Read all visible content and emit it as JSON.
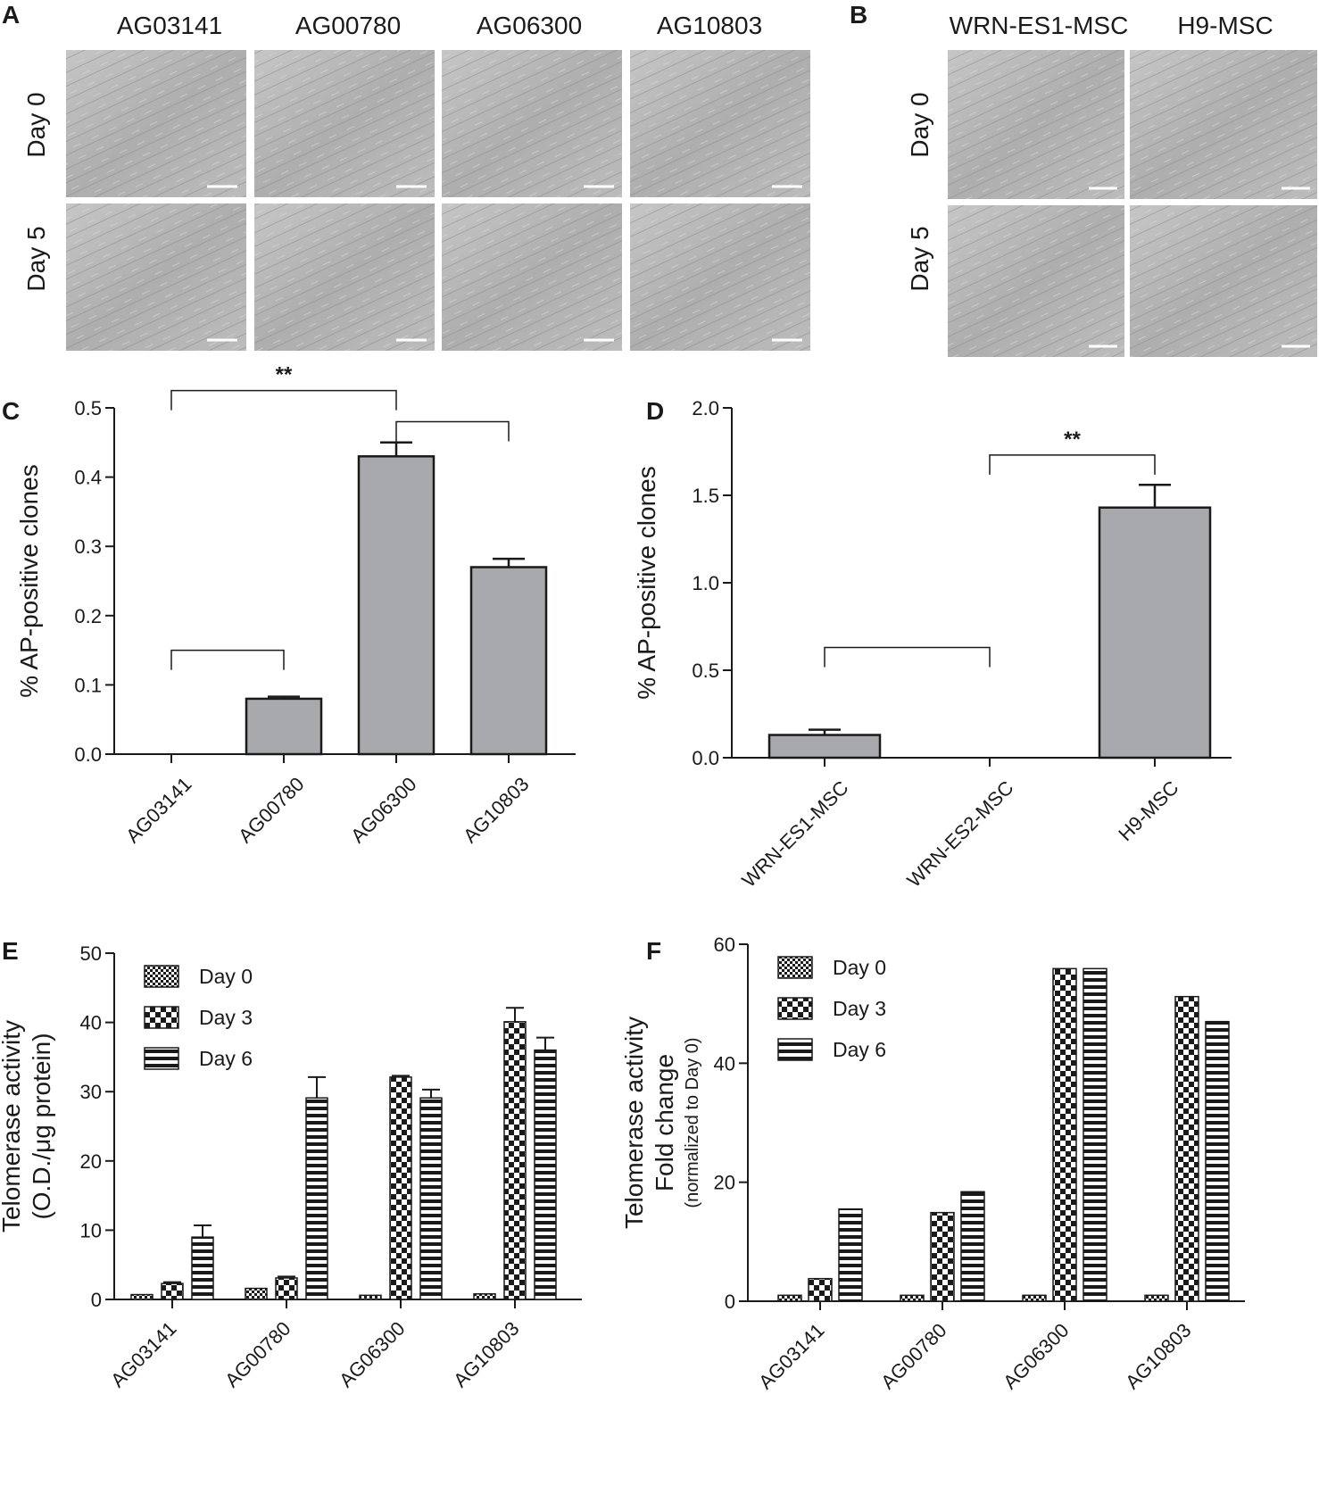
{
  "panels": {
    "A": {
      "label": "A",
      "columns": [
        "AG03141",
        "AG00780",
        "AG06300",
        "AG10803"
      ],
      "rows": [
        "Day 0",
        "Day 5"
      ]
    },
    "B": {
      "label": "B",
      "columns": [
        "WRN-ES1-MSC",
        "H9-MSC"
      ],
      "rows": [
        "Day 0",
        "Day 5"
      ]
    },
    "C": {
      "label": "C"
    },
    "D": {
      "label": "D"
    },
    "E": {
      "label": "E"
    },
    "F": {
      "label": "F"
    }
  },
  "colors": {
    "bar_fill": "#a7a9ac",
    "image_bg": "#b4b4b4",
    "ink": "#1a1a1a"
  },
  "chart_data": [
    {
      "id": "C",
      "type": "bar",
      "categories": [
        "AG03141",
        "AG00780",
        "AG06300",
        "AG10803"
      ],
      "values": [
        0.0,
        0.08,
        0.43,
        0.27
      ],
      "errors": [
        0.0,
        0.003,
        0.02,
        0.012
      ],
      "ylabel": "% AP-positive clones",
      "ylim": [
        0,
        0.5
      ],
      "yticks": [
        "0.0",
        "0.1",
        "0.2",
        "0.3",
        "0.4",
        "0.5"
      ],
      "significance": [
        {
          "from": 1,
          "to": 3,
          "label": "**",
          "level": 0.525
        },
        {
          "from": 3,
          "to": 4,
          "label": "",
          "level": 0.48
        },
        {
          "from": 1,
          "to": 2,
          "label": "",
          "level": 0.15
        }
      ]
    },
    {
      "id": "D",
      "type": "bar",
      "categories": [
        "WRN-ES1-MSC",
        "WRN-ES2-MSC",
        "H9-MSC"
      ],
      "values": [
        0.13,
        0.0,
        1.43
      ],
      "errors": [
        0.03,
        0.0,
        0.13
      ],
      "ylabel": "% AP-positive clones",
      "ylim": [
        0,
        2.0
      ],
      "yticks": [
        "0.0",
        "0.5",
        "1.0",
        "1.5",
        "2.0"
      ],
      "significance": [
        {
          "from": 2,
          "to": 3,
          "label": "**",
          "level": 1.73
        },
        {
          "from": 1,
          "to": 2,
          "label": "",
          "level": 0.63
        }
      ]
    },
    {
      "id": "E",
      "type": "bar",
      "categories": [
        "AG03141",
        "AG00780",
        "AG06300",
        "AG10803"
      ],
      "series": [
        {
          "name": "Day 0",
          "values": [
            0.7,
            1.6,
            0.6,
            0.8
          ],
          "errors": [
            0,
            0,
            0,
            0
          ]
        },
        {
          "name": "Day 3",
          "values": [
            2.3,
            3.1,
            32.1,
            40.1
          ],
          "errors": [
            0.2,
            0.2,
            0.2,
            2.0
          ]
        },
        {
          "name": "Day 6",
          "values": [
            9.0,
            29.1,
            29.1,
            36.0
          ],
          "errors": [
            1.7,
            3.0,
            1.2,
            1.8
          ]
        }
      ],
      "ylabel": [
        "Telomerase activity",
        "(O.D./μg protein)"
      ],
      "ylim": [
        0,
        50
      ],
      "yticks": [
        "0",
        "10",
        "20",
        "30",
        "40",
        "50"
      ],
      "legend": "top-left"
    },
    {
      "id": "F",
      "type": "bar",
      "categories": [
        "AG03141",
        "AG00780",
        "AG06300",
        "AG10803"
      ],
      "series": [
        {
          "name": "Day 0",
          "values": [
            1,
            1,
            1,
            1
          ]
        },
        {
          "name": "Day 3",
          "values": [
            3.8,
            14.9,
            55.9,
            51.2
          ]
        },
        {
          "name": "Day 6",
          "values": [
            15.5,
            18.4,
            55.9,
            47.0
          ]
        }
      ],
      "ylabel": [
        "Telomerase activity",
        "Fold change",
        "(normalized to Day 0)"
      ],
      "ylim": [
        0,
        60
      ],
      "yticks": [
        "0",
        "20",
        "40",
        "60"
      ],
      "legend": "top-left"
    }
  ]
}
